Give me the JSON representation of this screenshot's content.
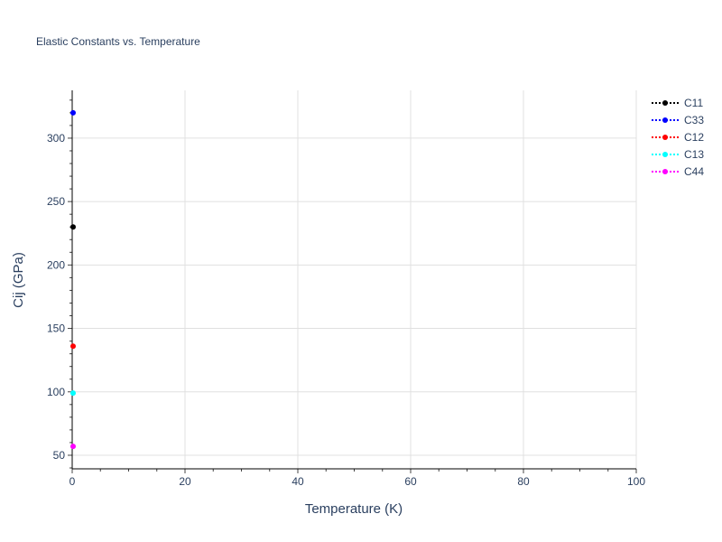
{
  "chart_data": {
    "type": "scatter",
    "title": "Elastic Constants vs. Temperature",
    "xlabel": "Temperature (K)",
    "ylabel": "Cij (GPa)",
    "xlim": [
      0,
      100
    ],
    "ylim": [
      39.3,
      337.7
    ],
    "xticks": [
      0,
      20,
      40,
      60,
      80,
      100
    ],
    "yticks": [
      50,
      100,
      150,
      200,
      250,
      300
    ],
    "grid": true,
    "legend_position": "top-right",
    "series": [
      {
        "name": "C11",
        "color": "#000000",
        "x": [
          0
        ],
        "y": [
          230
        ]
      },
      {
        "name": "C33",
        "color": "#0000ff",
        "x": [
          0
        ],
        "y": [
          320
        ]
      },
      {
        "name": "C12",
        "color": "#ff0000",
        "x": [
          0
        ],
        "y": [
          136
        ]
      },
      {
        "name": "C13",
        "color": "#00ffff",
        "x": [
          0
        ],
        "y": [
          99
        ]
      },
      {
        "name": "C44",
        "color": "#ff00ff",
        "x": [
          0
        ],
        "y": [
          57
        ]
      }
    ]
  }
}
